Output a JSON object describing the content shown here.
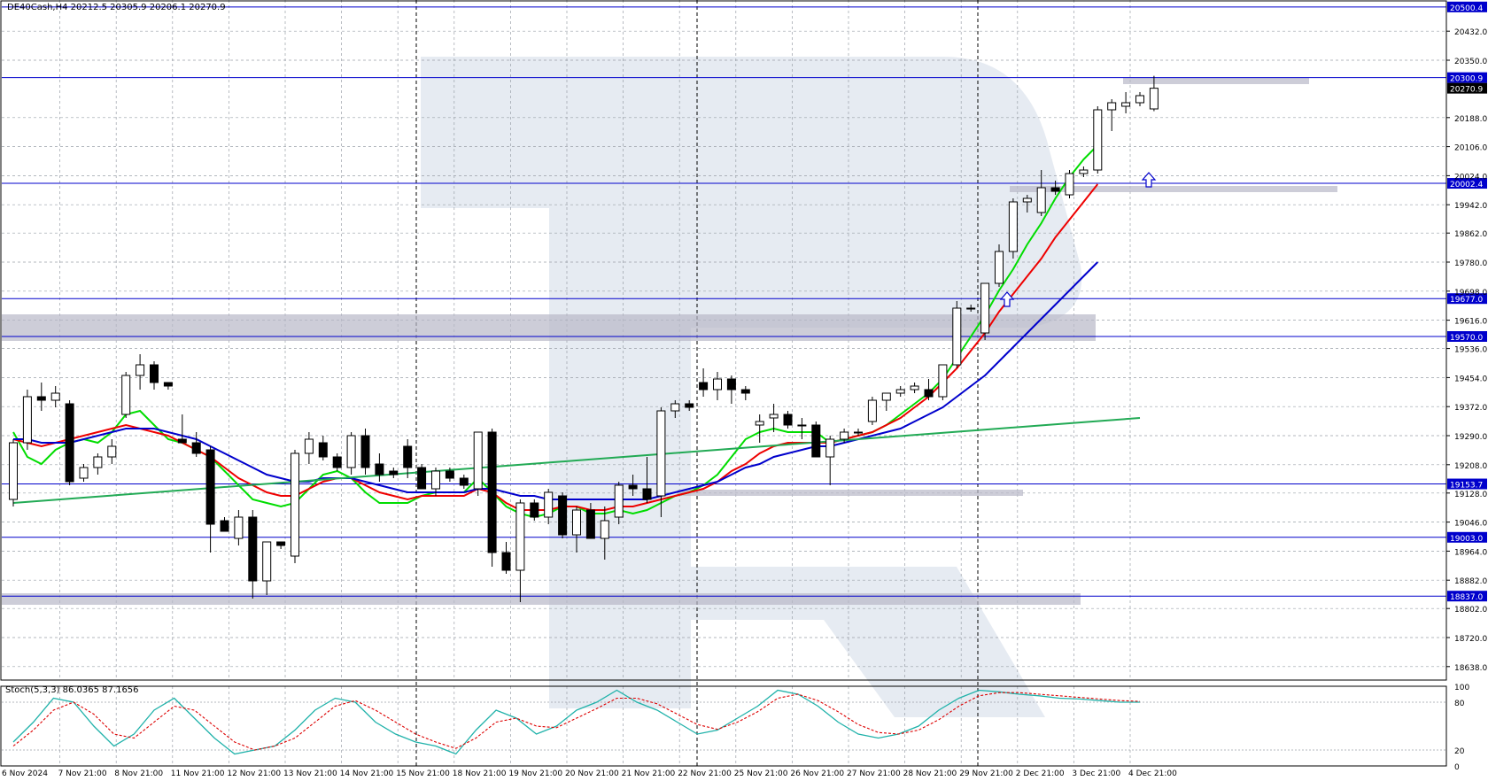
{
  "header": {
    "symbol_line": "DE40Cash,H4  20212.5 20305.9 20206.1 20270.9"
  },
  "stoch_label": "Stoch(5,3,3) 86.0365 87.1656",
  "price_axis": {
    "ticks": [
      "20432.0",
      "20350.0",
      "20188.0",
      "20106.0",
      "20024.0",
      "19942.0",
      "19862.0",
      "19780.0",
      "19698.0",
      "19616.0",
      "19536.0",
      "19454.0",
      "19372.0",
      "19290.0",
      "19208.0",
      "19128.0",
      "19046.0",
      "18964.0",
      "18882.0",
      "18802.0",
      "18720.0",
      "18638.0"
    ]
  },
  "levels": [
    {
      "label": "20500.4",
      "value": 20500.4
    },
    {
      "label": "20300.9",
      "value": 20300.9
    },
    {
      "label": "20002.4",
      "value": 20002.4
    },
    {
      "label": "19677.0",
      "value": 19677.0
    },
    {
      "label": "19570.0",
      "value": 19570.0
    },
    {
      "label": "19153.7",
      "value": 19153.7
    },
    {
      "label": "19003.0",
      "value": 19003.0
    },
    {
      "label": "18837.0",
      "value": 18837.0
    }
  ],
  "current_price": {
    "label": "20270.9",
    "value": 20270.9
  },
  "stoch_axis": {
    "ticks": [
      {
        "label": "100",
        "value": 100
      },
      {
        "label": "80",
        "value": 80
      },
      {
        "label": "20",
        "value": 20
      },
      {
        "label": "0",
        "value": 0
      }
    ]
  },
  "time_axis": {
    "labels": [
      "6 Nov 2024",
      "7 Nov 21:00",
      "8 Nov 21:00",
      "11 Nov 21:00",
      "12 Nov 21:00",
      "13 Nov 21:00",
      "14 Nov 21:00",
      "15 Nov 21:00",
      "18 Nov 21:00",
      "19 Nov 21:00",
      "20 Nov 21:00",
      "21 Nov 21:00",
      "22 Nov 21:00",
      "25 Nov 21:00",
      "26 Nov 21:00",
      "27 Nov 21:00",
      "28 Nov 21:00",
      "29 Nov 21:00",
      "2 Dec 21:00",
      "3 Dec 21:00",
      "4 Dec 21:00"
    ]
  },
  "colors": {
    "background": "#ffffff",
    "level_line": "#0000cc",
    "ma_fast": "#00dd00",
    "ma_mid": "#ee0000",
    "ma_slow": "#0000cc",
    "ma_long": "#22aa55",
    "stoch_main": "#20b2aa",
    "stoch_signal": "#dd0000",
    "zone": "#b8b8c8",
    "watermark": "#dde4ee"
  },
  "chart_data": {
    "type": "candlestick",
    "title": "DE40Cash,H4",
    "ohlc_header": {
      "open": 20212.5,
      "high": 20305.9,
      "low": 20206.1,
      "close": 20270.9
    },
    "ylim": [
      18600,
      20520
    ],
    "candles": [
      {
        "o": 19110,
        "h": 19280,
        "l": 19090,
        "c": 19270
      },
      {
        "o": 19270,
        "h": 19420,
        "l": 19250,
        "c": 19400
      },
      {
        "o": 19400,
        "h": 19440,
        "l": 19360,
        "c": 19390
      },
      {
        "o": 19390,
        "h": 19430,
        "l": 19370,
        "c": 19410
      },
      {
        "o": 19380,
        "h": 19390,
        "l": 19150,
        "c": 19160
      },
      {
        "o": 19170,
        "h": 19210,
        "l": 19160,
        "c": 19200
      },
      {
        "o": 19200,
        "h": 19240,
        "l": 19180,
        "c": 19230
      },
      {
        "o": 19230,
        "h": 19280,
        "l": 19210,
        "c": 19260
      },
      {
        "o": 19350,
        "h": 19470,
        "l": 19340,
        "c": 19460
      },
      {
        "o": 19460,
        "h": 19520,
        "l": 19420,
        "c": 19490
      },
      {
        "o": 19490,
        "h": 19500,
        "l": 19420,
        "c": 19440
      },
      {
        "o": 19440,
        "h": 19440,
        "l": 19420,
        "c": 19430
      },
      {
        "o": 19280,
        "h": 19350,
        "l": 19270,
        "c": 19270
      },
      {
        "o": 19270,
        "h": 19300,
        "l": 19230,
        "c": 19240
      },
      {
        "o": 19250,
        "h": 19260,
        "l": 18960,
        "c": 19040
      },
      {
        "o": 19050,
        "h": 19060,
        "l": 19020,
        "c": 19020
      },
      {
        "o": 19000,
        "h": 19080,
        "l": 18980,
        "c": 19060
      },
      {
        "o": 19060,
        "h": 19080,
        "l": 18830,
        "c": 18880
      },
      {
        "o": 18880,
        "h": 18990,
        "l": 18840,
        "c": 18990
      },
      {
        "o": 18990,
        "h": 18990,
        "l": 18970,
        "c": 18980
      },
      {
        "o": 18950,
        "h": 19250,
        "l": 18930,
        "c": 19240
      },
      {
        "o": 19240,
        "h": 19300,
        "l": 19210,
        "c": 19280
      },
      {
        "o": 19270,
        "h": 19290,
        "l": 19220,
        "c": 19230
      },
      {
        "o": 19230,
        "h": 19240,
        "l": 19190,
        "c": 19200
      },
      {
        "o": 19200,
        "h": 19300,
        "l": 19180,
        "c": 19290
      },
      {
        "o": 19290,
        "h": 19310,
        "l": 19180,
        "c": 19200
      },
      {
        "o": 19210,
        "h": 19240,
        "l": 19160,
        "c": 19180
      },
      {
        "o": 19190,
        "h": 19200,
        "l": 19170,
        "c": 19180
      },
      {
        "o": 19260,
        "h": 19280,
        "l": 19170,
        "c": 19200
      },
      {
        "o": 19200,
        "h": 19210,
        "l": 19140,
        "c": 19140
      },
      {
        "o": 19140,
        "h": 19200,
        "l": 19120,
        "c": 19190
      },
      {
        "o": 19190,
        "h": 19200,
        "l": 19160,
        "c": 19170
      },
      {
        "o": 19170,
        "h": 19180,
        "l": 19140,
        "c": 19150
      },
      {
        "o": 19140,
        "h": 19300,
        "l": 19120,
        "c": 19300
      },
      {
        "o": 19300,
        "h": 19310,
        "l": 18920,
        "c": 18960
      },
      {
        "o": 18960,
        "h": 18990,
        "l": 18900,
        "c": 18910
      },
      {
        "o": 18910,
        "h": 19110,
        "l": 18820,
        "c": 19100
      },
      {
        "o": 19100,
        "h": 19110,
        "l": 19050,
        "c": 19060
      },
      {
        "o": 19060,
        "h": 19140,
        "l": 19040,
        "c": 19130
      },
      {
        "o": 19120,
        "h": 19130,
        "l": 19000,
        "c": 19010
      },
      {
        "o": 19010,
        "h": 19090,
        "l": 18960,
        "c": 19080
      },
      {
        "o": 19080,
        "h": 19100,
        "l": 19000,
        "c": 19000
      },
      {
        "o": 19000,
        "h": 19090,
        "l": 18940,
        "c": 19050
      },
      {
        "o": 19060,
        "h": 19160,
        "l": 19040,
        "c": 19150
      },
      {
        "o": 19150,
        "h": 19180,
        "l": 19120,
        "c": 19140
      },
      {
        "o": 19140,
        "h": 19230,
        "l": 19100,
        "c": 19110
      },
      {
        "o": 19120,
        "h": 19370,
        "l": 19060,
        "c": 19360
      },
      {
        "o": 19360,
        "h": 19390,
        "l": 19340,
        "c": 19380
      },
      {
        "o": 19380,
        "h": 19390,
        "l": 19360,
        "c": 19370
      },
      {
        "o": 19440,
        "h": 19480,
        "l": 19400,
        "c": 19420
      },
      {
        "o": 19420,
        "h": 19470,
        "l": 19390,
        "c": 19450
      },
      {
        "o": 19450,
        "h": 19460,
        "l": 19380,
        "c": 19420
      },
      {
        "o": 19420,
        "h": 19430,
        "l": 19390,
        "c": 19410
      },
      {
        "o": 19320,
        "h": 19350,
        "l": 19270,
        "c": 19330
      },
      {
        "o": 19340,
        "h": 19380,
        "l": 19300,
        "c": 19350
      },
      {
        "o": 19350,
        "h": 19360,
        "l": 19310,
        "c": 19320
      },
      {
        "o": 19320,
        "h": 19340,
        "l": 19280,
        "c": 19320
      },
      {
        "o": 19320,
        "h": 19330,
        "l": 19230,
        "c": 19230
      },
      {
        "o": 19230,
        "h": 19290,
        "l": 19150,
        "c": 19280
      },
      {
        "o": 19280,
        "h": 19310,
        "l": 19270,
        "c": 19300
      },
      {
        "o": 19300,
        "h": 19310,
        "l": 19290,
        "c": 19300
      },
      {
        "o": 19330,
        "h": 19400,
        "l": 19320,
        "c": 19390
      },
      {
        "o": 19390,
        "h": 19410,
        "l": 19360,
        "c": 19410
      },
      {
        "o": 19410,
        "h": 19430,
        "l": 19400,
        "c": 19420
      },
      {
        "o": 19420,
        "h": 19440,
        "l": 19410,
        "c": 19430
      },
      {
        "o": 19420,
        "h": 19450,
        "l": 19390,
        "c": 19400
      },
      {
        "o": 19400,
        "h": 19490,
        "l": 19390,
        "c": 19490
      },
      {
        "o": 19490,
        "h": 19670,
        "l": 19480,
        "c": 19650
      },
      {
        "o": 19650,
        "h": 19660,
        "l": 19640,
        "c": 19650
      },
      {
        "o": 19580,
        "h": 19720,
        "l": 19560,
        "c": 19720
      },
      {
        "o": 19720,
        "h": 19830,
        "l": 19710,
        "c": 19810
      },
      {
        "o": 19810,
        "h": 19960,
        "l": 19790,
        "c": 19950
      },
      {
        "o": 19950,
        "h": 19970,
        "l": 19920,
        "c": 19960
      },
      {
        "o": 19920,
        "h": 20040,
        "l": 19910,
        "c": 19990
      },
      {
        "o": 19990,
        "h": 20010,
        "l": 19970,
        "c": 19980
      },
      {
        "o": 19970,
        "h": 20040,
        "l": 19960,
        "c": 20030
      },
      {
        "o": 20030,
        "h": 20050,
        "l": 20020,
        "c": 20040
      },
      {
        "o": 20040,
        "h": 20220,
        "l": 20030,
        "c": 20210
      },
      {
        "o": 20210,
        "h": 20240,
        "l": 20150,
        "c": 20230
      },
      {
        "o": 20220,
        "h": 20260,
        "l": 20200,
        "c": 20230
      },
      {
        "o": 20230,
        "h": 20260,
        "l": 20220,
        "c": 20250
      },
      {
        "o": 20212.5,
        "h": 20305.9,
        "l": 20206.1,
        "c": 20270.9
      }
    ],
    "series": [
      {
        "values": [
          19300,
          19230,
          19210,
          19250,
          19270,
          19280,
          19270,
          19300,
          19350,
          19360,
          19320,
          19280,
          19270,
          19250,
          19230,
          19190,
          19150,
          19110,
          19100,
          19090,
          19100,
          19140,
          19180,
          19190,
          19170,
          19130,
          19100,
          19100,
          19100,
          19120,
          19130,
          19130,
          19130,
          19170,
          19130,
          19090,
          19070,
          19060,
          19070,
          19090,
          19090,
          19070,
          19070,
          19080,
          19070,
          19080,
          19100,
          19120,
          19130,
          19150,
          19180,
          19230,
          19280,
          19300,
          19310,
          19300,
          19300,
          19300,
          19270,
          19280,
          19290,
          19300,
          19320,
          19350,
          19380,
          19410,
          19450,
          19510,
          19570,
          19630,
          19700,
          19760,
          19830,
          19890,
          19960,
          20020,
          20070,
          20110
        ]
      },
      {
        "values": [
          19280,
          19270,
          19260,
          19270,
          19280,
          19290,
          19300,
          19310,
          19320,
          19310,
          19300,
          19290,
          19270,
          19250,
          19230,
          19200,
          19170,
          19150,
          19130,
          19120,
          19120,
          19140,
          19160,
          19170,
          19170,
          19150,
          19130,
          19120,
          19110,
          19120,
          19120,
          19120,
          19120,
          19140,
          19130,
          19100,
          19080,
          19080,
          19080,
          19090,
          19090,
          19080,
          19080,
          19090,
          19090,
          19100,
          19110,
          19120,
          19130,
          19140,
          19160,
          19190,
          19210,
          19240,
          19260,
          19270,
          19270,
          19270,
          19270,
          19280,
          19290,
          19300,
          19320,
          19340,
          19370,
          19400,
          19440,
          19480,
          19530,
          19580,
          19640,
          19690,
          19740,
          19790,
          19850,
          19900,
          19950,
          20000
        ]
      },
      {
        "values": [
          19280,
          19280,
          19270,
          19270,
          19270,
          19280,
          19290,
          19300,
          19310,
          19310,
          19310,
          19300,
          19290,
          19280,
          19260,
          19240,
          19220,
          19200,
          19180,
          19170,
          19160,
          19160,
          19170,
          19170,
          19170,
          19160,
          19150,
          19140,
          19130,
          19130,
          19130,
          19130,
          19130,
          19140,
          19140,
          19130,
          19120,
          19120,
          19110,
          19110,
          19110,
          19110,
          19110,
          19110,
          19110,
          19110,
          19120,
          19130,
          19140,
          19150,
          19160,
          19180,
          19200,
          19210,
          19230,
          19240,
          19250,
          19260,
          19260,
          19270,
          19280,
          19290,
          19300,
          19310,
          19330,
          19350,
          19370,
          19400,
          19430,
          19460,
          19500,
          19540,
          19580,
          19620,
          19660,
          19700,
          19740,
          19780
        ]
      },
      {
        "values": [
          19100,
          19110,
          19120,
          19130,
          19140,
          19150,
          19160,
          19170,
          19180,
          19190,
          19200,
          19210,
          19220,
          19230,
          19240,
          19250,
          19260,
          19270,
          19280,
          19290,
          19300,
          19310,
          19320,
          19330,
          19340
        ]
      }
    ],
    "stochastic": {
      "main": [
        30,
        55,
        85,
        80,
        50,
        25,
        40,
        70,
        85,
        60,
        35,
        15,
        20,
        25,
        45,
        70,
        85,
        80,
        55,
        40,
        30,
        25,
        15,
        45,
        70,
        60,
        40,
        50,
        70,
        80,
        95,
        80,
        70,
        55,
        40,
        45,
        60,
        75,
        95,
        90,
        75,
        55,
        40,
        35,
        40,
        50,
        70,
        85,
        95,
        93,
        90,
        88,
        85,
        84,
        82,
        80,
        80
      ],
      "signal": [
        25,
        45,
        70,
        80,
        65,
        40,
        35,
        55,
        75,
        70,
        50,
        30,
        20,
        25,
        35,
        55,
        75,
        82,
        70,
        55,
        40,
        30,
        22,
        35,
        55,
        60,
        50,
        48,
        60,
        72,
        85,
        85,
        78,
        65,
        52,
        46,
        55,
        68,
        85,
        90,
        82,
        68,
        52,
        42,
        40,
        45,
        58,
        75,
        88,
        92,
        92,
        90,
        88,
        86,
        84,
        82,
        81
      ]
    }
  }
}
